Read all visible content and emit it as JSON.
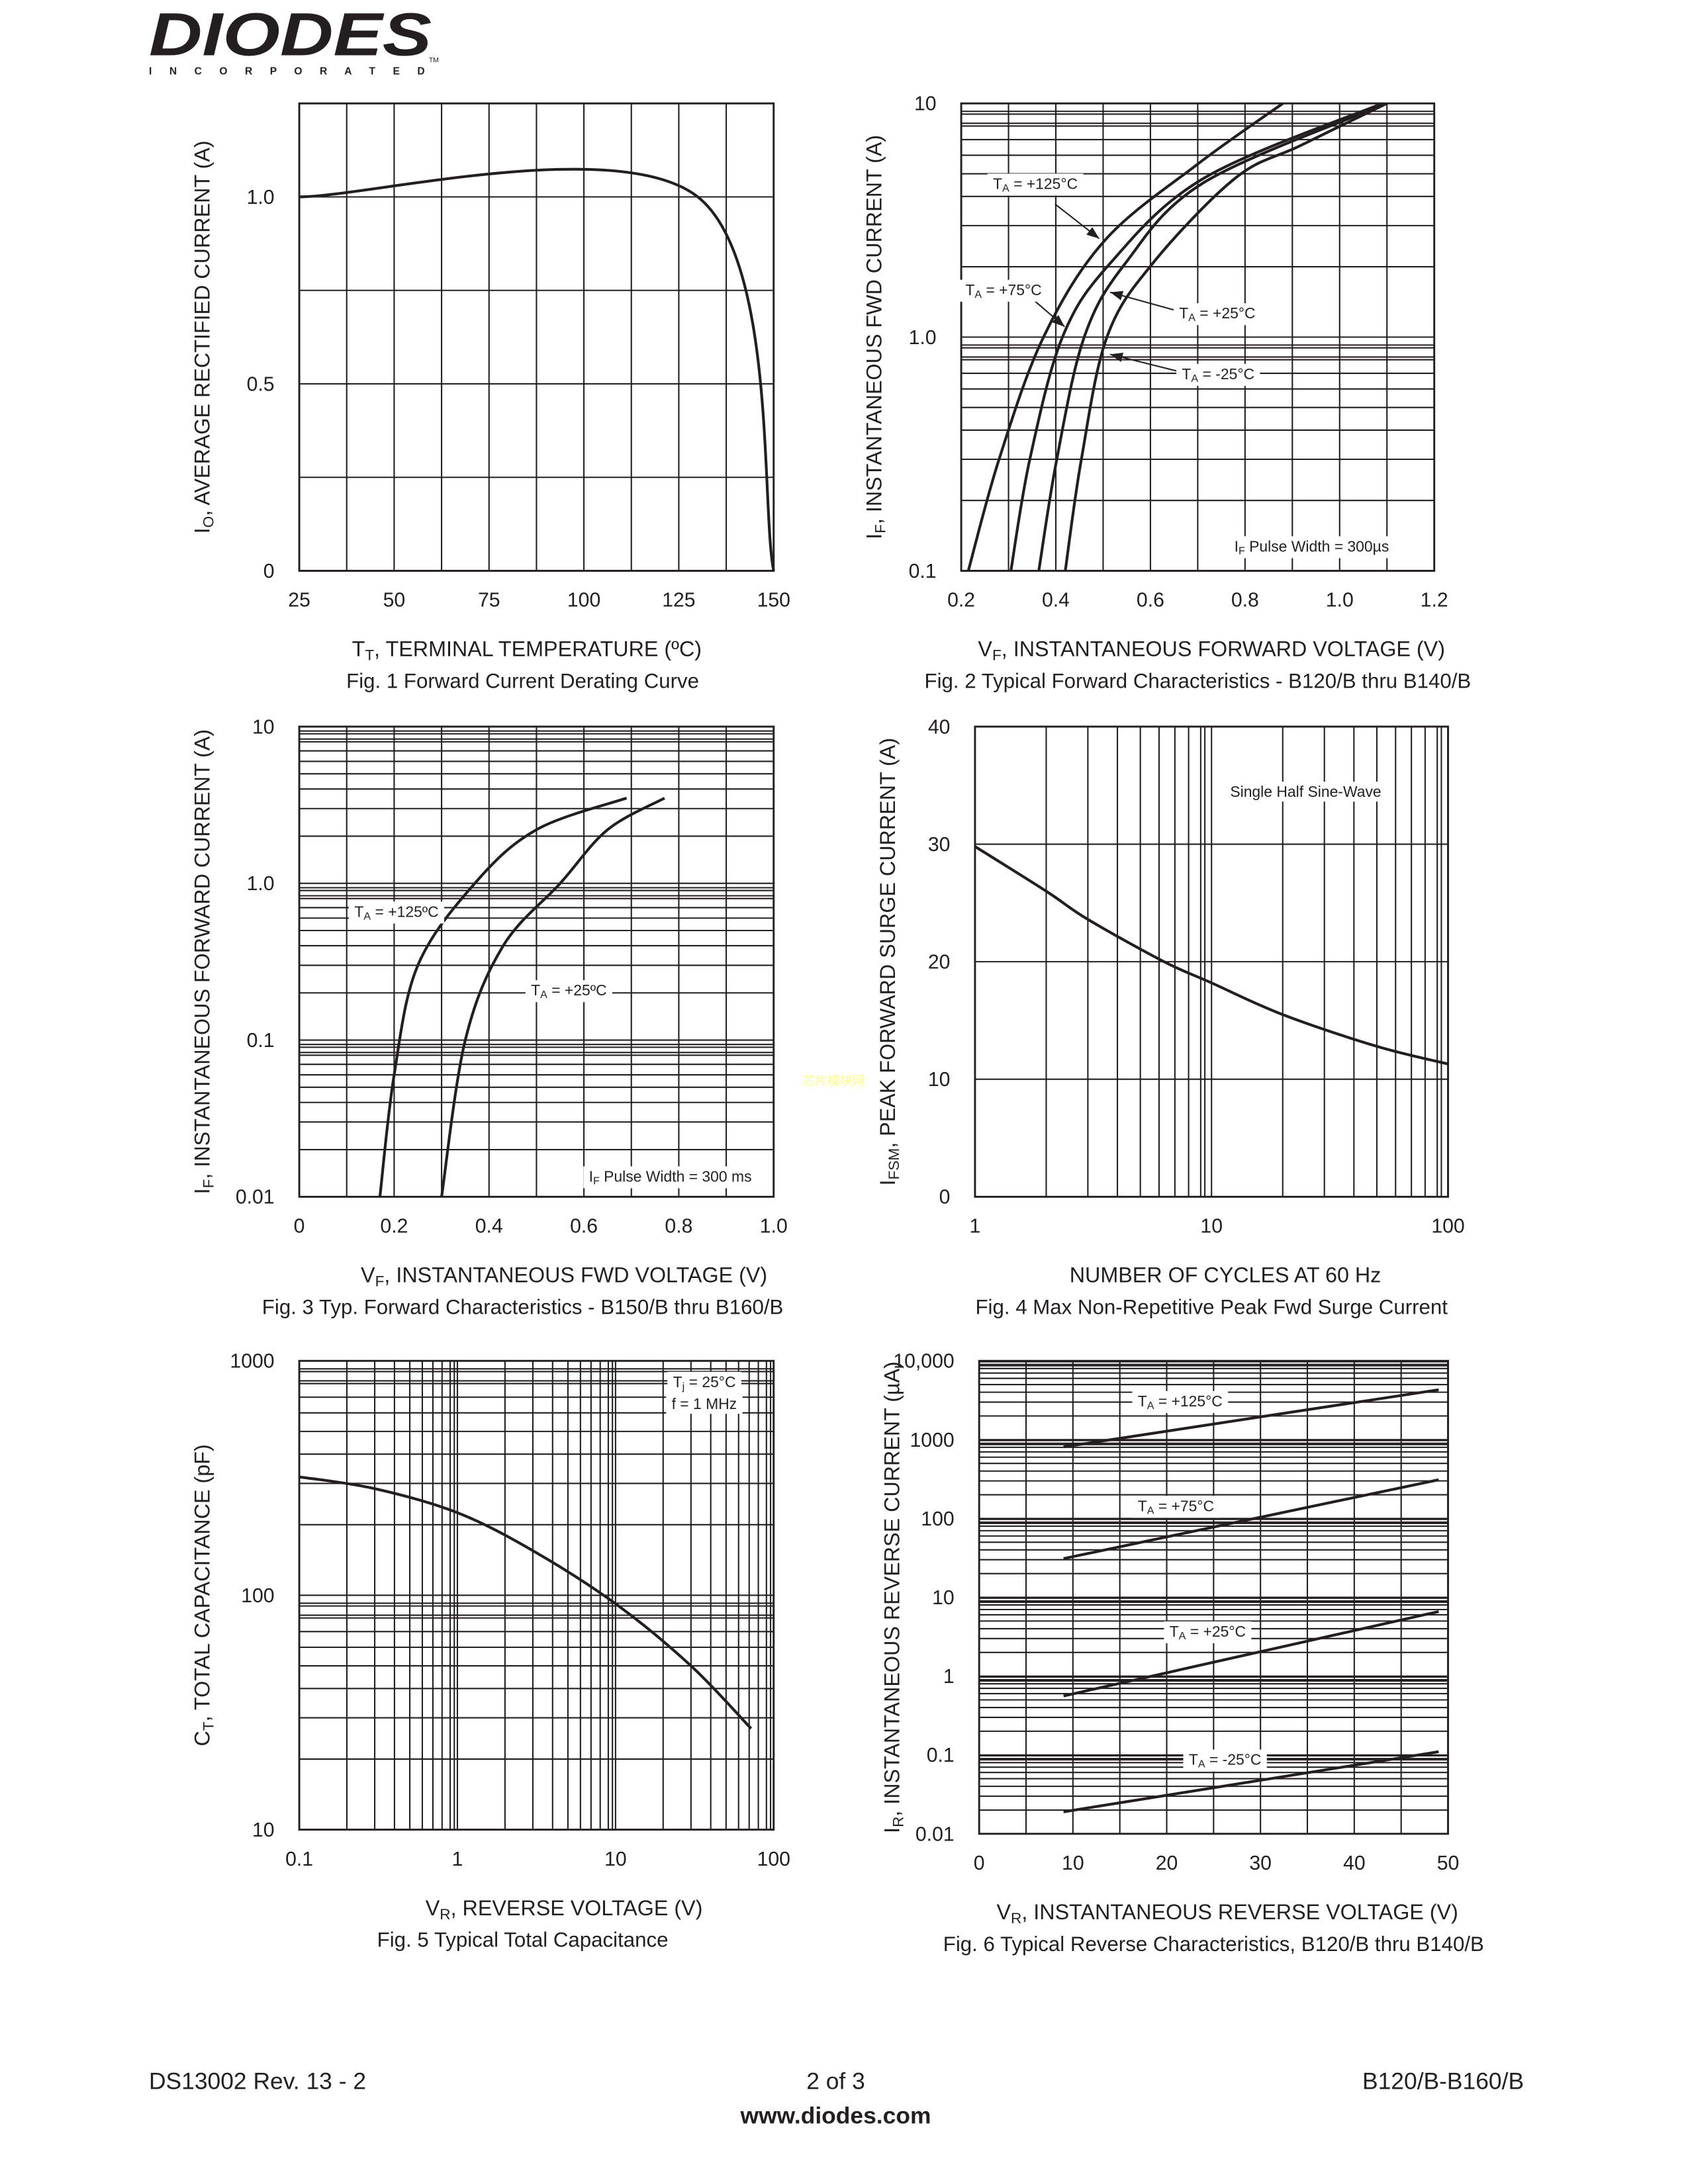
{
  "header": {
    "logo_text": "DIODES",
    "logo_sub": "I N C O R P O R A T E D",
    "tm": "TM"
  },
  "watermark": "芯片模块网",
  "footer": {
    "left": "DS13002 Rev. 13 - 2",
    "center": "2 of 3",
    "right": "B120/B-B160/B",
    "url": "www.diodes.com"
  },
  "chart_data": [
    {
      "type": "line",
      "caption": "Fig. 1  Forward Current Derating Curve",
      "xlabel": [
        [
          "T",
          0
        ],
        [
          "T",
          1
        ],
        [
          ",  TERMINAL TEMPERATURE (ºC)",
          0
        ]
      ],
      "ylabel": [
        [
          "I",
          0
        ],
        [
          "O",
          1
        ],
        [
          ", AVERAGE RECTIFIED CURRENT (A)",
          0
        ]
      ],
      "xscale": "linear",
      "yscale": "linear",
      "xlim": [
        25,
        150
      ],
      "ylim": [
        0,
        1.25
      ],
      "xticks": [
        {
          "v": 25,
          "t": "25"
        },
        {
          "v": 50,
          "t": "50"
        },
        {
          "v": 75,
          "t": "75"
        },
        {
          "v": 100,
          "t": "100"
        },
        {
          "v": 125,
          "t": "125"
        },
        {
          "v": 150,
          "t": "150"
        }
      ],
      "yticks": [
        {
          "v": 0,
          "t": "0"
        },
        {
          "v": 0.5,
          "t": "0.5"
        },
        {
          "v": 1.0,
          "t": "1.0"
        }
      ],
      "series": [
        {
          "name": "derating",
          "points": [
            [
              25,
              1.0
            ],
            [
              130,
              1.0
            ],
            [
              150,
              0
            ]
          ]
        }
      ],
      "annotations": []
    },
    {
      "type": "line",
      "caption": "Fig. 2  Typical Forward Characteristics - B120/B thru B140/B",
      "xlabel": [
        [
          "V",
          0
        ],
        [
          "F",
          1
        ],
        [
          ", INSTANTANEOUS FORWARD VOLTAGE (V)",
          0
        ]
      ],
      "ylabel": [
        [
          "I",
          0
        ],
        [
          "F",
          1
        ],
        [
          ", INSTANTANEOUS FWD CURRENT (A)",
          0
        ]
      ],
      "xscale": "linear",
      "yscale": "log",
      "xlim": [
        0.2,
        1.2
      ],
      "ylim": [
        0.1,
        10
      ],
      "xticks": [
        {
          "v": 0.2,
          "t": "0.2"
        },
        {
          "v": 0.4,
          "t": "0.4"
        },
        {
          "v": 0.6,
          "t": "0.6"
        },
        {
          "v": 0.8,
          "t": "0.8"
        },
        {
          "v": 1.0,
          "t": "1.0"
        },
        {
          "v": 1.2,
          "t": "1.2"
        }
      ],
      "yticks": [
        {
          "v": 0.1,
          "t": "0.1"
        },
        {
          "v": 1,
          "t": "1.0"
        },
        {
          "v": 10,
          "t": "10"
        }
      ],
      "series": [
        {
          "name": "TA = +125°C",
          "points": [
            [
              0.215,
              0.1
            ],
            [
              0.28,
              0.3
            ],
            [
              0.374,
              1.0
            ],
            [
              0.504,
              2.6
            ],
            [
              0.7,
              5.5
            ],
            [
              0.88,
              10
            ]
          ]
        },
        {
          "name": "TA = +75°C",
          "points": [
            [
              0.305,
              0.1
            ],
            [
              0.345,
              0.3
            ],
            [
              0.414,
              1.0
            ],
            [
              0.515,
              2.07
            ],
            [
              0.714,
              4.8
            ],
            [
              1.09,
              10
            ]
          ]
        },
        {
          "name": "TA = +25°C",
          "points": [
            [
              0.364,
              0.1
            ],
            [
              0.402,
              0.3
            ],
            [
              0.46,
              1.0
            ],
            [
              0.547,
              2.07
            ],
            [
              0.714,
              4.6
            ],
            [
              1.1,
              10
            ]
          ]
        },
        {
          "name": "TA = -25°C",
          "points": [
            [
              0.42,
              0.1
            ],
            [
              0.454,
              0.3
            ],
            [
              0.508,
              1.0
            ],
            [
              0.605,
              2.07
            ],
            [
              0.78,
              4.8
            ],
            [
              0.917,
              6.6
            ],
            [
              1.1,
              10
            ]
          ]
        }
      ],
      "annotations": [
        [
          [
            "T",
            0
          ],
          [
            "A",
            1
          ],
          [
            " = +125°C",
            0
          ]
        ],
        [
          [
            "T",
            0
          ],
          [
            "A",
            1
          ],
          [
            " = +75°C",
            0
          ]
        ],
        [
          [
            "T",
            0
          ],
          [
            "A",
            1
          ],
          [
            " = +25°C",
            0
          ]
        ],
        [
          [
            "T",
            0
          ],
          [
            "A",
            1
          ],
          [
            " = -25°C",
            0
          ]
        ],
        [
          [
            "I",
            0
          ],
          [
            "F",
            1
          ],
          [
            " Pulse Width = 300µs",
            0
          ]
        ]
      ]
    },
    {
      "type": "line",
      "caption": "Fig. 3  Typ. Forward Characteristics - B150/B thru B160/B",
      "xlabel": [
        [
          "V",
          0
        ],
        [
          "F",
          1
        ],
        [
          ", INSTANTANEOUS FWD VOLTAGE (V)",
          0
        ]
      ],
      "ylabel": [
        [
          "I",
          0
        ],
        [
          "F",
          1
        ],
        [
          ", INSTANTANEOUS FORWARD CURRENT (A)",
          0
        ]
      ],
      "xscale": "linear",
      "yscale": "log",
      "xlim": [
        0,
        1.0
      ],
      "ylim": [
        0.01,
        10
      ],
      "xticks": [
        {
          "v": 0,
          "t": "0"
        },
        {
          "v": 0.2,
          "t": "0.2"
        },
        {
          "v": 0.4,
          "t": "0.4"
        },
        {
          "v": 0.6,
          "t": "0.6"
        },
        {
          "v": 0.8,
          "t": "0.8"
        },
        {
          "v": 1.0,
          "t": "1.0"
        }
      ],
      "yticks": [
        {
          "v": 0.01,
          "t": "0.01"
        },
        {
          "v": 0.1,
          "t": "0.1"
        },
        {
          "v": 1,
          "t": "1.0"
        },
        {
          "v": 10,
          "t": "10"
        }
      ],
      "series": [
        {
          "name": "TA = +125ºC",
          "points": [
            [
              0.17,
              0.01
            ],
            [
              0.2,
              0.06
            ],
            [
              0.25,
              0.3
            ],
            [
              0.37,
              1.0
            ],
            [
              0.5,
              2.2
            ],
            [
              0.69,
              3.5
            ]
          ]
        },
        {
          "name": "TA = +25ºC",
          "points": [
            [
              0.3,
              0.01
            ],
            [
              0.35,
              0.1
            ],
            [
              0.43,
              0.4
            ],
            [
              0.55,
              1.0
            ],
            [
              0.65,
              2.2
            ],
            [
              0.77,
              3.5
            ]
          ]
        }
      ],
      "annotations": [
        [
          [
            "T",
            0
          ],
          [
            "A",
            1
          ],
          [
            " = +125ºC",
            0
          ]
        ],
        [
          [
            "T",
            0
          ],
          [
            "A",
            1
          ],
          [
            " = +25ºC",
            0
          ]
        ],
        [
          [
            "I",
            0
          ],
          [
            "F",
            1
          ],
          [
            " Pulse Width = 300 ms",
            0
          ]
        ]
      ]
    },
    {
      "type": "line",
      "caption": "Fig. 4  Max Non-Repetitive Peak Fwd Surge Current",
      "xlabel": [
        [
          "NUMBER OF CYCLES AT 60 Hz",
          0
        ]
      ],
      "ylabel": [
        [
          "I",
          0
        ],
        [
          "FSM",
          1
        ],
        [
          ", PEAK FORWARD SURGE CURRENT (A)",
          0
        ]
      ],
      "xscale": "log",
      "yscale": "linear",
      "xlim": [
        1,
        100
      ],
      "ylim": [
        0,
        40
      ],
      "xticks": [
        {
          "v": 1,
          "t": "1"
        },
        {
          "v": 10,
          "t": "10"
        },
        {
          "v": 100,
          "t": "100"
        }
      ],
      "yticks": [
        {
          "v": 0,
          "t": "0"
        },
        {
          "v": 10,
          "t": "10"
        },
        {
          "v": 20,
          "t": "20"
        },
        {
          "v": 30,
          "t": "30"
        },
        {
          "v": 40,
          "t": "40"
        }
      ],
      "series": [
        {
          "name": "surge",
          "points": [
            [
              1,
              29.8
            ],
            [
              2,
              26
            ],
            [
              3,
              23.6
            ],
            [
              6.3,
              20
            ],
            [
              10,
              18.2
            ],
            [
              20,
              15.5
            ],
            [
              50,
              12.8
            ],
            [
              100,
              11.3
            ]
          ]
        }
      ],
      "annotations": [
        [
          [
            "Single Half Sine-Wave",
            0
          ]
        ]
      ]
    },
    {
      "type": "line",
      "caption": "Fig. 5  Typical Total Capacitance",
      "xlabel": [
        [
          "V",
          0
        ],
        [
          "R",
          1
        ],
        [
          ", REVERSE VOLTAGE (V)",
          0
        ]
      ],
      "ylabel": [
        [
          "C",
          0
        ],
        [
          "T",
          1
        ],
        [
          ", TOTAL CAPACITANCE (pF)",
          0
        ]
      ],
      "xscale": "log",
      "yscale": "log",
      "xlim": [
        0.1,
        100
      ],
      "ylim": [
        10,
        1000
      ],
      "xticks": [
        {
          "v": 0.1,
          "t": "0.1"
        },
        {
          "v": 1,
          "t": "1"
        },
        {
          "v": 10,
          "t": "10"
        },
        {
          "v": 100,
          "t": "100"
        }
      ],
      "yticks": [
        {
          "v": 10,
          "t": "10"
        },
        {
          "v": 100,
          "t": "100"
        },
        {
          "v": 1000,
          "t": "1000"
        }
      ],
      "series": [
        {
          "name": "capacitance",
          "points": [
            [
              0.1,
              320
            ],
            [
              0.3,
              285
            ],
            [
              1,
              225
            ],
            [
              3,
              155
            ],
            [
              10,
              92
            ],
            [
              30,
              50
            ],
            [
              72,
              27
            ]
          ]
        }
      ],
      "annotations": [
        [
          [
            "T",
            0
          ],
          [
            "j",
            1
          ],
          [
            " = 25°C",
            0
          ]
        ],
        [
          [
            "f = 1 MHz",
            0
          ]
        ]
      ]
    },
    {
      "type": "line",
      "caption": "Fig. 6  Typical Reverse Characteristics, B120/B thru B140/B",
      "xlabel": [
        [
          "V",
          0
        ],
        [
          "R",
          1
        ],
        [
          ", INSTANTANEOUS REVERSE VOLTAGE (V)",
          0
        ]
      ],
      "ylabel": [
        [
          "I",
          0
        ],
        [
          "R",
          1
        ],
        [
          ", INSTANTANEOUS REVERSE CURRENT (µA)",
          0
        ]
      ],
      "xscale": "linear",
      "yscale": "log",
      "xlim": [
        0,
        50
      ],
      "ylim": [
        0.01,
        10000
      ],
      "xticks": [
        {
          "v": 0,
          "t": "0"
        },
        {
          "v": 10,
          "t": "10"
        },
        {
          "v": 20,
          "t": "20"
        },
        {
          "v": 30,
          "t": "30"
        },
        {
          "v": 40,
          "t": "40"
        },
        {
          "v": 50,
          "t": "50"
        }
      ],
      "yticks": [
        {
          "v": 0.01,
          "t": "0.01"
        },
        {
          "v": 0.1,
          "t": "0.1"
        },
        {
          "v": 1,
          "t": "1"
        },
        {
          "v": 10,
          "t": "10"
        },
        {
          "v": 100,
          "t": "100"
        },
        {
          "v": 1000,
          "t": "1000"
        },
        {
          "v": 10000,
          "t": "10,000"
        }
      ],
      "series": [
        {
          "name": "TA = +125°C",
          "points": [
            [
              9,
              810
            ],
            [
              49,
              4300
            ]
          ]
        },
        {
          "name": "TA = +75°C",
          "points": [
            [
              9,
              31
            ],
            [
              49,
              310
            ]
          ]
        },
        {
          "name": "TA = +25°C",
          "points": [
            [
              9,
              0.56
            ],
            [
              49,
              6.6
            ]
          ]
        },
        {
          "name": "TA = -25°C",
          "points": [
            [
              9,
              0.019
            ],
            [
              49,
              0.11
            ]
          ]
        }
      ],
      "annotations": [
        [
          [
            "T",
            0
          ],
          [
            "A",
            1
          ],
          [
            " = +125°C",
            0
          ]
        ],
        [
          [
            "T",
            0
          ],
          [
            "A",
            1
          ],
          [
            " = +75°C",
            0
          ]
        ],
        [
          [
            "T",
            0
          ],
          [
            "A",
            1
          ],
          [
            " = +25°C",
            0
          ]
        ],
        [
          [
            "T",
            0
          ],
          [
            "A",
            1
          ],
          [
            " = -25°C",
            0
          ]
        ]
      ]
    }
  ]
}
